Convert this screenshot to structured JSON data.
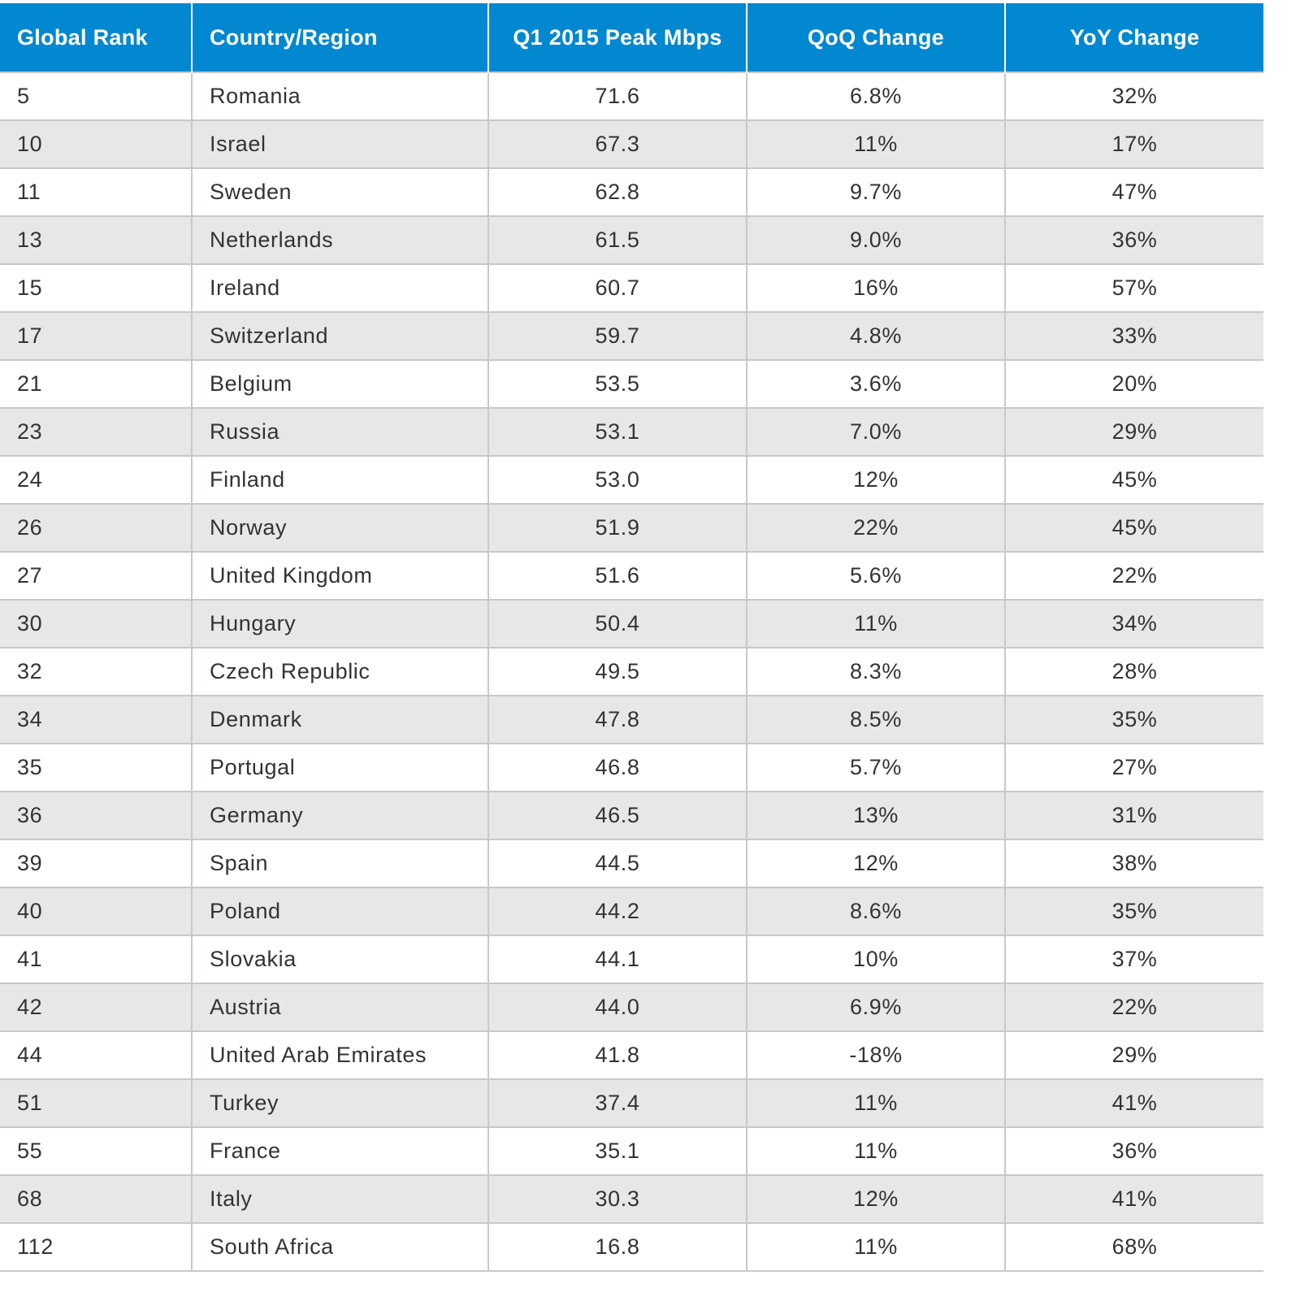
{
  "chart_data": {
    "type": "table",
    "columns": [
      "Global Rank",
      "Country/Region",
      "Q1 2015 Peak Mbps",
      "QoQ Change",
      "YoY Change"
    ],
    "rows": [
      [
        "5",
        "Romania",
        "71.6",
        "6.8%",
        "32%"
      ],
      [
        "10",
        "Israel",
        "67.3",
        "11%",
        "17%"
      ],
      [
        "11",
        "Sweden",
        "62.8",
        "9.7%",
        "47%"
      ],
      [
        "13",
        "Netherlands",
        "61.5",
        "9.0%",
        "36%"
      ],
      [
        "15",
        "Ireland",
        "60.7",
        "16%",
        "57%"
      ],
      [
        "17",
        "Switzerland",
        "59.7",
        "4.8%",
        "33%"
      ],
      [
        "21",
        "Belgium",
        "53.5",
        "3.6%",
        "20%"
      ],
      [
        "23",
        "Russia",
        "53.1",
        "7.0%",
        "29%"
      ],
      [
        "24",
        "Finland",
        "53.0",
        "12%",
        "45%"
      ],
      [
        "26",
        "Norway",
        "51.9",
        "22%",
        "45%"
      ],
      [
        "27",
        "United Kingdom",
        "51.6",
        "5.6%",
        "22%"
      ],
      [
        "30",
        "Hungary",
        "50.4",
        "11%",
        "34%"
      ],
      [
        "32",
        "Czech Republic",
        "49.5",
        "8.3%",
        "28%"
      ],
      [
        "34",
        "Denmark",
        "47.8",
        "8.5%",
        "35%"
      ],
      [
        "35",
        "Portugal",
        "46.8",
        "5.7%",
        "27%"
      ],
      [
        "36",
        "Germany",
        "46.5",
        "13%",
        "31%"
      ],
      [
        "39",
        "Spain",
        "44.5",
        "12%",
        "38%"
      ],
      [
        "40",
        "Poland",
        "44.2",
        "8.6%",
        "35%"
      ],
      [
        "41",
        "Slovakia",
        "44.1",
        "10%",
        "37%"
      ],
      [
        "42",
        "Austria",
        "44.0",
        "6.9%",
        "22%"
      ],
      [
        "44",
        "United Arab Emirates",
        "41.8",
        "-18%",
        "29%"
      ],
      [
        "51",
        "Turkey",
        "37.4",
        "11%",
        "41%"
      ],
      [
        "55",
        "France",
        "35.1",
        "11%",
        "36%"
      ],
      [
        "68",
        "Italy",
        "30.3",
        "12%",
        "41%"
      ],
      [
        "112",
        "South Africa",
        "16.8",
        "11%",
        "68%"
      ]
    ]
  },
  "colors": {
    "header_bg": "#0288d1",
    "header_text": "#ffffff",
    "row_alt_bg": "#e6e7e6",
    "grid": "#c7c9c8",
    "cell_text": "#333333"
  }
}
